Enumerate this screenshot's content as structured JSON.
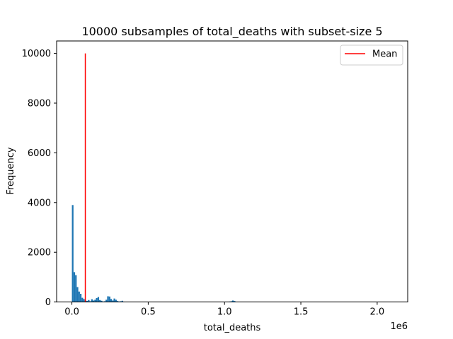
{
  "chart_data": {
    "type": "bar",
    "title": "10000 subsamples of total_deaths with subset-size 5",
    "xlabel": "total_deaths",
    "ylabel": "Frequency",
    "x_offset_label": "1e6",
    "xlim": [
      -0.1,
      2.2
    ],
    "ylim": [
      0,
      10500
    ],
    "x_unit_note": "x values in units of 1e6",
    "xticks": [
      0.0,
      0.5,
      1.0,
      1.5,
      2.0
    ],
    "xtick_labels": [
      "0.0",
      "0.5",
      "1.0",
      "1.5",
      "2.0"
    ],
    "yticks": [
      0,
      2000,
      4000,
      6000,
      8000,
      10000
    ],
    "ytick_labels": [
      "0",
      "2000",
      "4000",
      "6000",
      "8000",
      "10000"
    ],
    "bar_color": "#1f77b4",
    "bin_width": 0.0105,
    "histogram": {
      "bin_left_edges": [
        0.0,
        0.0105,
        0.021,
        0.0315,
        0.042,
        0.0525,
        0.063,
        0.0735,
        0.084,
        0.0945,
        0.105,
        0.1155,
        0.126,
        0.1365,
        0.147,
        0.1575,
        0.168,
        0.1785,
        0.189,
        0.1995,
        0.21,
        0.2205,
        0.231,
        0.2415,
        0.252,
        0.2625,
        0.273,
        0.2835,
        0.294,
        0.3045,
        0.315,
        0.3255,
        0.336,
        1.029,
        1.0395,
        1.05,
        1.0605
      ],
      "counts": [
        3900,
        1200,
        1080,
        600,
        420,
        330,
        170,
        120,
        60,
        45,
        80,
        30,
        110,
        60,
        90,
        160,
        200,
        80,
        50,
        20,
        30,
        90,
        230,
        220,
        120,
        60,
        140,
        90,
        40,
        20,
        30,
        50,
        10,
        20,
        30,
        60,
        40
      ]
    },
    "series": [
      {
        "name": "Mean",
        "type": "vline",
        "x": 0.088,
        "ymin": 0,
        "ymax": 10000,
        "color": "#ff0000"
      }
    ],
    "legend": {
      "position": "top-right",
      "entries": [
        "Mean"
      ]
    }
  }
}
